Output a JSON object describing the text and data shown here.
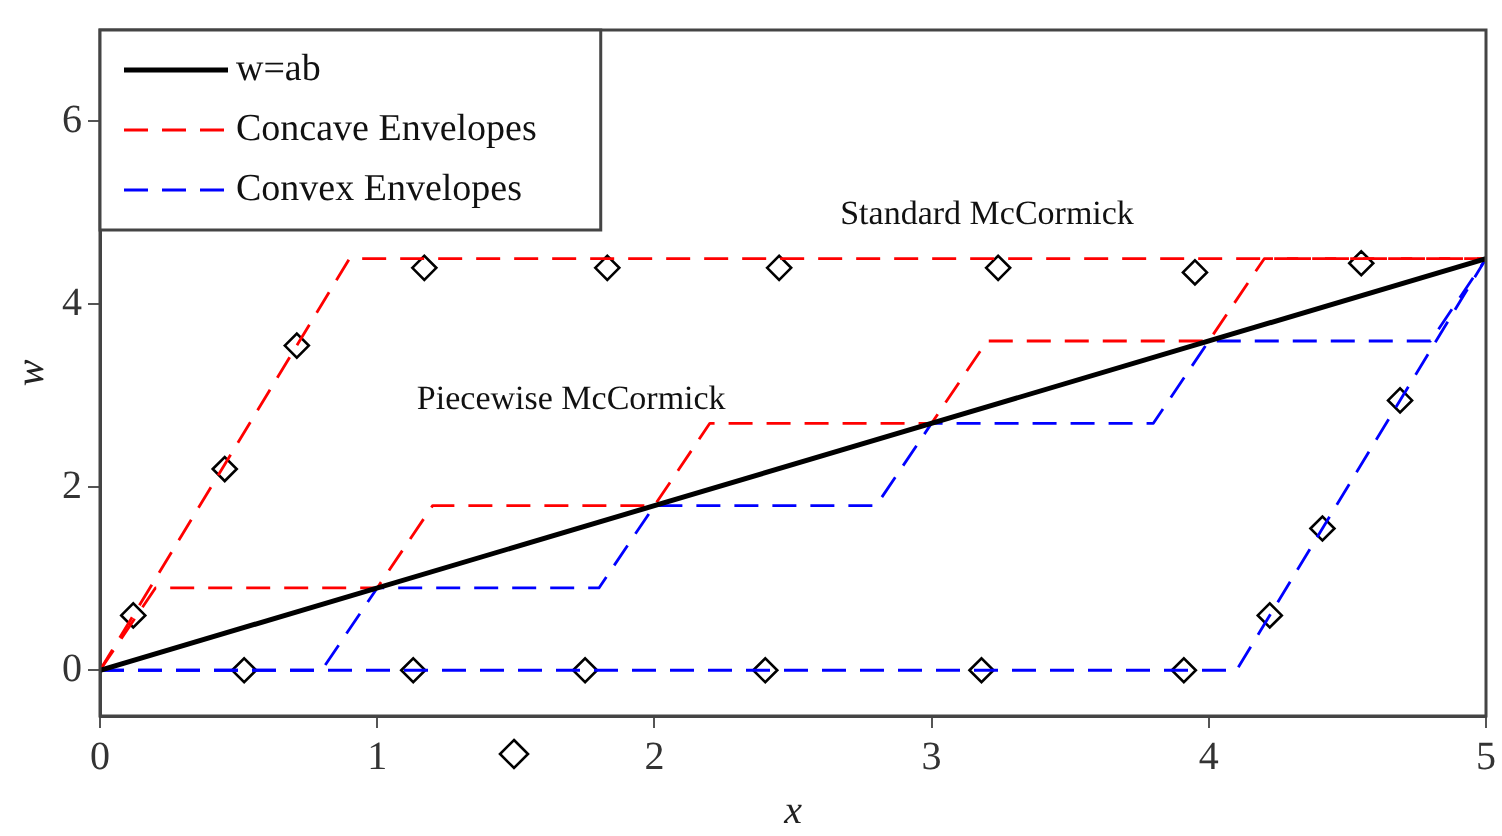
{
  "chart_data": {
    "type": "line",
    "xlabel": "x",
    "ylabel": "w",
    "xlim": [
      0,
      5
    ],
    "ylim": [
      -0.5,
      7
    ],
    "xticks": [
      0,
      1,
      2,
      3,
      4,
      5
    ],
    "yticks": [
      0,
      2,
      4,
      6
    ],
    "grid": false,
    "legend": "top left",
    "annotations": [
      "Standard McCormick",
      "Piecewise McCormick"
    ],
    "series": [
      {
        "name": "w=ab",
        "color": "#000000",
        "line_style": "solid",
        "x": [
          0,
          5
        ],
        "values": [
          0,
          4.5
        ]
      },
      {
        "name": "Concave Envelopes",
        "color": "#ff0000",
        "line_style": "dashed",
        "x": [
          0,
          0.2,
          1,
          1.2,
          2,
          2.2,
          3,
          3.2,
          4,
          4.2,
          5
        ],
        "values": [
          0,
          0.9,
          0.9,
          1.8,
          1.8,
          2.7,
          2.7,
          3.6,
          3.6,
          4.5,
          4.5
        ]
      },
      {
        "name": "Convex Envelopes",
        "color": "#0000ff",
        "line_style": "dashed",
        "x": [
          0,
          0.8,
          1,
          1.8,
          2,
          2.8,
          3,
          3.8,
          4,
          4.8,
          5
        ],
        "values": [
          0,
          0,
          0.9,
          0.9,
          1.8,
          1.8,
          2.7,
          2.7,
          3.6,
          3.6,
          4.5
        ]
      },
      {
        "color": "#ff0000",
        "line_style": "dashed",
        "x": [
          0,
          0.9,
          5
        ],
        "values": [
          0,
          4.5,
          4.5
        ]
      },
      {
        "color": "#0000ff",
        "line_style": "dashed",
        "x": [
          0,
          4.1,
          5
        ],
        "values": [
          0,
          0,
          4.5
        ]
      },
      {
        "type": "scatter",
        "color": "#000000",
        "marker": "diamond",
        "x": [
          0.12,
          0.45,
          0.71,
          1.17,
          1.83,
          2.45,
          3.24,
          3.95,
          4.55,
          0.52,
          1.13,
          1.75,
          2.4,
          3.18,
          3.91,
          4.22,
          4.41,
          4.69
        ],
        "values": [
          0.6,
          2.2,
          3.55,
          4.4,
          4.4,
          4.4,
          4.4,
          4.35,
          4.45,
          0,
          0,
          0,
          0,
          0,
          0,
          0.6,
          1.55,
          2.95
        ]
      }
    ]
  }
}
